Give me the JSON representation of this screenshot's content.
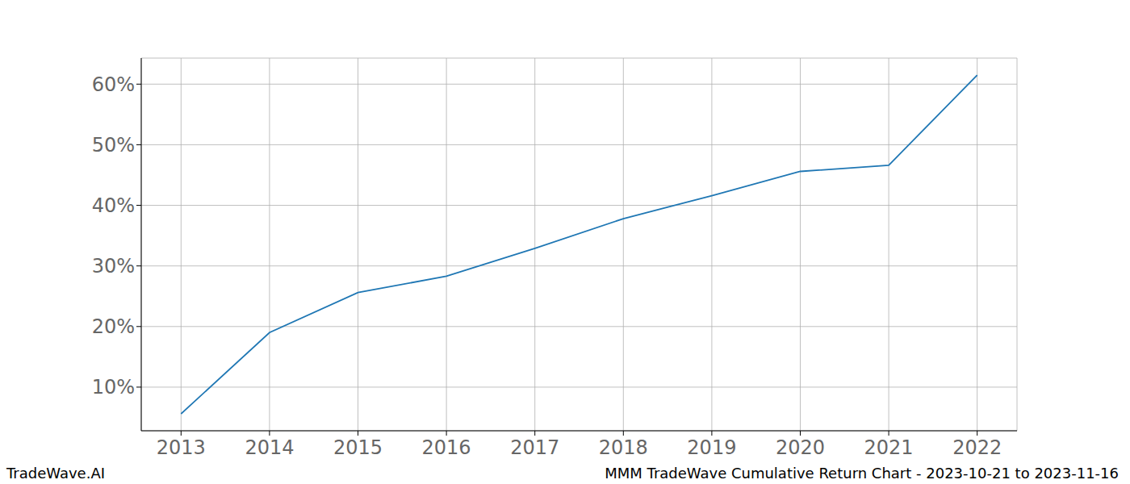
{
  "chart_data": {
    "type": "line",
    "title": "MMM TradeWave Cumulative Return Chart - 2023-10-21 to 2023-11-16",
    "annotations": [
      "TradeWave.AI"
    ],
    "x": [
      2013,
      2014,
      2015,
      2016,
      2017,
      2018,
      2019,
      2020,
      2021,
      2022
    ],
    "values": [
      5.6,
      19.0,
      25.6,
      28.3,
      32.9,
      37.8,
      41.6,
      45.6,
      46.6,
      61.5
    ],
    "color": "#1f77b4",
    "xlim": [
      2012.55,
      2022.45
    ],
    "xticks": [
      2013,
      2014,
      2015,
      2016,
      2017,
      2018,
      2019,
      2020,
      2021,
      2022
    ],
    "ylim": [
      2.8,
      64.3
    ],
    "yticks": [
      {
        "value": 10,
        "label": "10%"
      },
      {
        "value": 20,
        "label": "20%"
      },
      {
        "value": 30,
        "label": "30%"
      },
      {
        "value": 40,
        "label": "40%"
      },
      {
        "value": 50,
        "label": "50%"
      },
      {
        "value": 60,
        "label": "60%"
      }
    ],
    "grid": true
  }
}
